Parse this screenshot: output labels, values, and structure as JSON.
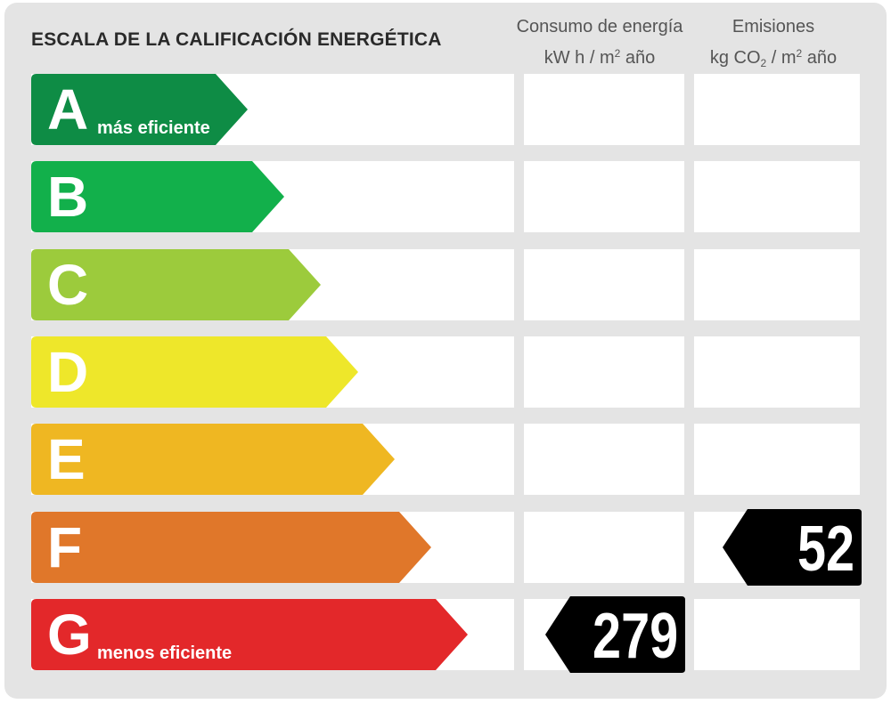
{
  "title": "ESCALA DE LA CALIFICACIÓN ENERGÉTICA",
  "columns": {
    "consumption": {
      "line1": "Consumo de energía",
      "line2_pre": "kW h  / m",
      "line2_sup": "2",
      "line2_post": " año"
    },
    "emissions": {
      "line1": "Emisiones",
      "line2_pre": "kg CO",
      "line2_sub": "2",
      "line2_mid": "  / m",
      "line2_sup": "2",
      "line2_post": " año"
    }
  },
  "ratings": [
    {
      "letter": "A",
      "label": "más eficiente",
      "color": "#0e8c45"
    },
    {
      "letter": "B",
      "label": "",
      "color": "#12b04b"
    },
    {
      "letter": "C",
      "label": "",
      "color": "#9ccb3c"
    },
    {
      "letter": "D",
      "label": "",
      "color": "#eee72a"
    },
    {
      "letter": "E",
      "label": "",
      "color": "#efb722"
    },
    {
      "letter": "F",
      "label": "",
      "color": "#e0772a"
    },
    {
      "letter": "G",
      "label": "menos eficiente",
      "color": "#e3282a"
    }
  ],
  "consumption_value": {
    "rating": "G",
    "value": "279"
  },
  "emissions_value": {
    "rating": "F",
    "value": "52"
  },
  "badge_color": "#000000"
}
